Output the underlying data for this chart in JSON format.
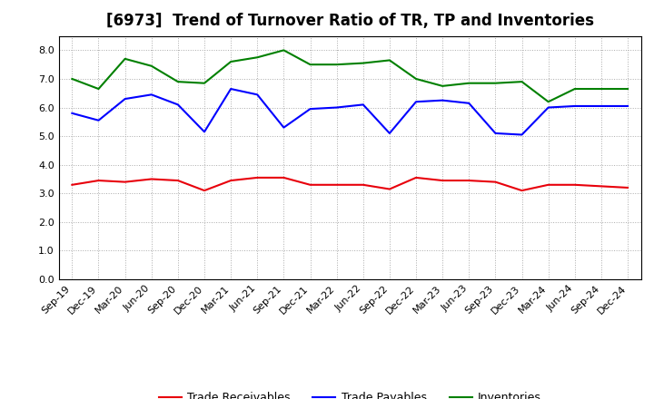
{
  "title": "[6973]  Trend of Turnover Ratio of TR, TP and Inventories",
  "x_labels": [
    "Sep-19",
    "Dec-19",
    "Mar-20",
    "Jun-20",
    "Sep-20",
    "Dec-20",
    "Mar-21",
    "Jun-21",
    "Sep-21",
    "Dec-21",
    "Mar-22",
    "Jun-22",
    "Sep-22",
    "Dec-22",
    "Mar-23",
    "Jun-23",
    "Sep-23",
    "Dec-23",
    "Mar-24",
    "Jun-24",
    "Sep-24",
    "Dec-24"
  ],
  "trade_receivables": [
    3.3,
    3.45,
    3.4,
    3.5,
    3.45,
    3.1,
    3.45,
    3.55,
    3.55,
    3.3,
    3.3,
    3.3,
    3.15,
    3.55,
    3.45,
    3.45,
    3.4,
    3.1,
    3.3,
    3.3,
    3.25,
    3.2
  ],
  "trade_payables": [
    5.8,
    5.55,
    6.3,
    6.45,
    6.1,
    5.15,
    6.65,
    6.45,
    5.3,
    5.95,
    6.0,
    6.1,
    5.1,
    6.2,
    6.25,
    6.15,
    5.1,
    5.05,
    6.0,
    6.05,
    6.05,
    6.05
  ],
  "inventories": [
    7.0,
    6.65,
    7.7,
    7.45,
    6.9,
    6.85,
    7.6,
    7.75,
    8.0,
    7.5,
    7.5,
    7.55,
    7.65,
    7.0,
    6.75,
    6.85,
    6.85,
    6.9,
    6.2,
    6.65,
    6.65,
    6.65
  ],
  "ylim": [
    0.0,
    8.5
  ],
  "yticks": [
    0.0,
    1.0,
    2.0,
    3.0,
    4.0,
    5.0,
    6.0,
    7.0,
    8.0
  ],
  "color_tr": "#e8000b",
  "color_tp": "#0000ff",
  "color_inv": "#008000",
  "legend_labels": [
    "Trade Receivables",
    "Trade Payables",
    "Inventories"
  ],
  "background_color": "#ffffff",
  "grid_color": "#aaaaaa",
  "title_fontsize": 12,
  "label_fontsize": 9,
  "tick_fontsize": 8
}
